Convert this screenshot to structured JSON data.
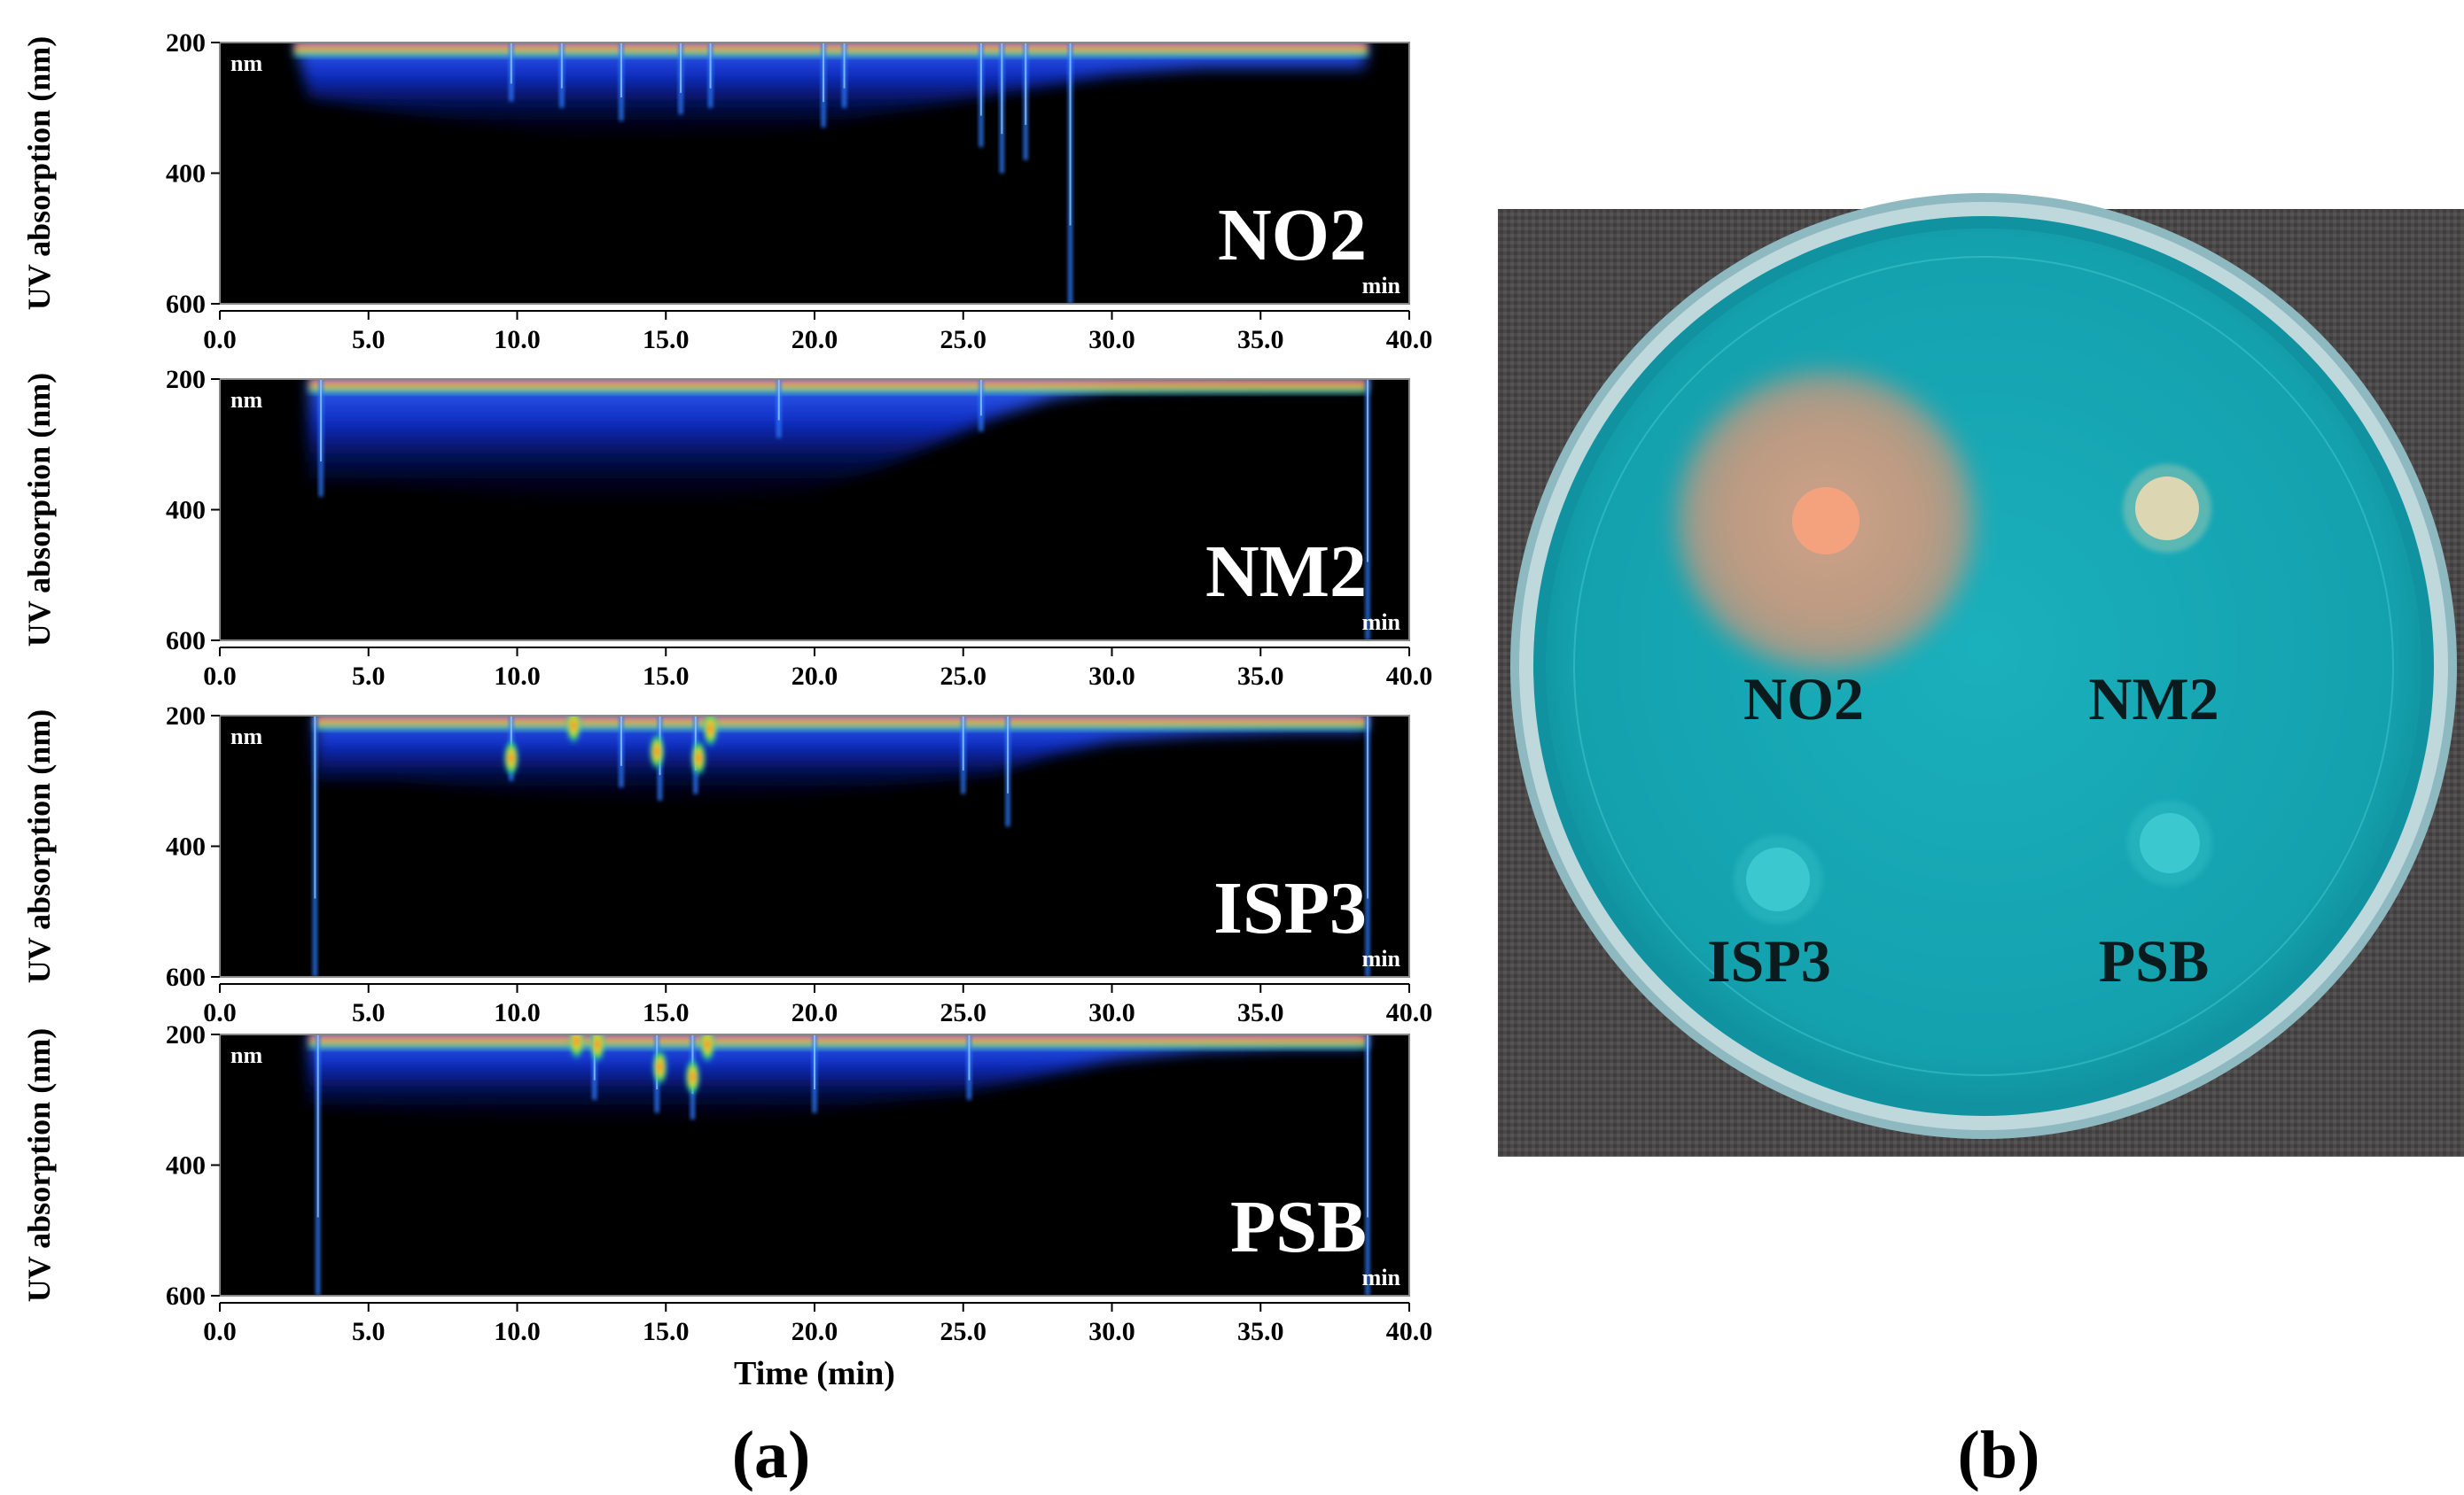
{
  "chart_data": [
    {
      "type": "heatmap",
      "name": "NO2",
      "unit_y": "nm",
      "unit_x": "min",
      "ylabel": "UV absorption (nm)",
      "xlim": [
        0,
        40
      ],
      "ylim": [
        200,
        600
      ],
      "yticks": [
        "200",
        "400",
        "600"
      ],
      "xticks": [
        "0.0",
        "5.0",
        "10.0",
        "15.0",
        "20.0",
        "25.0",
        "30.0",
        "35.0",
        "40.0"
      ],
      "signal_start_min": 2.5,
      "signal_end_min": 38.6,
      "band_depth_nm": [
        [
          3,
          285
        ],
        [
          5,
          300
        ],
        [
          8,
          320
        ],
        [
          10,
          330
        ],
        [
          12,
          350
        ],
        [
          14,
          355
        ],
        [
          16,
          345
        ],
        [
          18,
          340
        ],
        [
          20,
          330
        ],
        [
          22,
          310
        ],
        [
          24,
          295
        ],
        [
          26,
          280
        ],
        [
          28,
          265
        ],
        [
          30,
          250
        ],
        [
          33,
          240
        ],
        [
          36,
          240
        ],
        [
          38.5,
          240
        ]
      ],
      "peaks": [
        {
          "t": 9.8,
          "depth": 290
        },
        {
          "t": 11.5,
          "depth": 300
        },
        {
          "t": 13.5,
          "depth": 320
        },
        {
          "t": 15.5,
          "depth": 310
        },
        {
          "t": 16.5,
          "depth": 300
        },
        {
          "t": 20.3,
          "depth": 330
        },
        {
          "t": 21.0,
          "depth": 300
        },
        {
          "t": 25.6,
          "depth": 360
        },
        {
          "t": 26.3,
          "depth": 400
        },
        {
          "t": 27.1,
          "depth": 380
        },
        {
          "t": 28.6,
          "depth": 600
        }
      ],
      "hot_spots": []
    },
    {
      "type": "heatmap",
      "name": "NM2",
      "unit_y": "nm",
      "unit_x": "min",
      "ylabel": "UV absorption (nm)",
      "xlim": [
        0,
        40
      ],
      "ylim": [
        200,
        600
      ],
      "yticks": [
        "200",
        "400",
        "600"
      ],
      "xticks": [
        "0.0",
        "5.0",
        "10.0",
        "15.0",
        "20.0",
        "25.0",
        "30.0",
        "35.0",
        "40.0"
      ],
      "signal_start_min": 3.0,
      "signal_end_min": 38.6,
      "band_depth_nm": [
        [
          3,
          360
        ],
        [
          5,
          360
        ],
        [
          8,
          370
        ],
        [
          10,
          385
        ],
        [
          12,
          395
        ],
        [
          14,
          400
        ],
        [
          16,
          395
        ],
        [
          18,
          385
        ],
        [
          20,
          370
        ],
        [
          22,
          340
        ],
        [
          24,
          300
        ],
        [
          26,
          260
        ],
        [
          28,
          230
        ],
        [
          30,
          215
        ],
        [
          35,
          210
        ],
        [
          38.5,
          210
        ]
      ],
      "peaks": [
        {
          "t": 3.4,
          "depth": 380
        },
        {
          "t": 18.8,
          "depth": 290
        },
        {
          "t": 25.6,
          "depth": 280
        },
        {
          "t": 38.6,
          "depth": 600
        }
      ],
      "hot_spots": []
    },
    {
      "type": "heatmap",
      "name": "ISP3",
      "unit_y": "nm",
      "unit_x": "min",
      "ylabel": "UV absorption (nm)",
      "xlim": [
        0,
        40
      ],
      "ylim": [
        200,
        600
      ],
      "yticks": [
        "200",
        "400",
        "600"
      ],
      "xticks": [
        "0.0",
        "5.0",
        "10.0",
        "15.0",
        "20.0",
        "25.0",
        "30.0",
        "35.0",
        "40.0"
      ],
      "signal_start_min": 3.2,
      "signal_end_min": 38.6,
      "band_depth_nm": [
        [
          3.2,
          300
        ],
        [
          6,
          300
        ],
        [
          10,
          320
        ],
        [
          13,
          330
        ],
        [
          15,
          340
        ],
        [
          17,
          330
        ],
        [
          20,
          320
        ],
        [
          23,
          305
        ],
        [
          26,
          290
        ],
        [
          28,
          260
        ],
        [
          30,
          240
        ],
        [
          33,
          230
        ],
        [
          36,
          225
        ],
        [
          38.5,
          225
        ]
      ],
      "peaks": [
        {
          "t": 3.2,
          "depth": 600
        },
        {
          "t": 9.8,
          "depth": 300
        },
        {
          "t": 13.5,
          "depth": 310
        },
        {
          "t": 14.8,
          "depth": 330
        },
        {
          "t": 16.0,
          "depth": 320
        },
        {
          "t": 25.0,
          "depth": 320
        },
        {
          "t": 26.5,
          "depth": 370
        },
        {
          "t": 38.6,
          "depth": 600
        }
      ],
      "hot_spots": [
        {
          "t": 9.8,
          "nm": 265
        },
        {
          "t": 11.9,
          "nm": 215
        },
        {
          "t": 14.7,
          "nm": 255
        },
        {
          "t": 16.1,
          "nm": 265
        },
        {
          "t": 16.5,
          "nm": 220
        }
      ]
    },
    {
      "type": "heatmap",
      "name": "PSB",
      "unit_y": "nm",
      "unit_x": "min",
      "ylabel": "UV absorption (nm)",
      "xlabel": "Time (min)",
      "xlim": [
        0,
        40
      ],
      "ylim": [
        200,
        600
      ],
      "yticks": [
        "200",
        "400",
        "600"
      ],
      "xticks": [
        "0.0",
        "5.0",
        "10.0",
        "15.0",
        "20.0",
        "25.0",
        "30.0",
        "35.0",
        "40.0"
      ],
      "signal_start_min": 3.0,
      "signal_end_min": 38.6,
      "band_depth_nm": [
        [
          3,
          310
        ],
        [
          6,
          320
        ],
        [
          10,
          330
        ],
        [
          13,
          340
        ],
        [
          15,
          340
        ],
        [
          17,
          330
        ],
        [
          20,
          320
        ],
        [
          23,
          300
        ],
        [
          25,
          290
        ],
        [
          28,
          260
        ],
        [
          30,
          240
        ],
        [
          33,
          225
        ],
        [
          36,
          220
        ],
        [
          38.5,
          220
        ]
      ],
      "peaks": [
        {
          "t": 3.3,
          "depth": 600
        },
        {
          "t": 12.6,
          "depth": 300
        },
        {
          "t": 14.7,
          "depth": 320
        },
        {
          "t": 15.9,
          "depth": 330
        },
        {
          "t": 20.0,
          "depth": 320
        },
        {
          "t": 25.2,
          "depth": 300
        },
        {
          "t": 38.6,
          "depth": 600
        }
      ],
      "hot_spots": [
        {
          "t": 12.0,
          "nm": 210
        },
        {
          "t": 12.7,
          "nm": 215
        },
        {
          "t": 14.8,
          "nm": 250
        },
        {
          "t": 15.9,
          "nm": 265
        },
        {
          "t": 16.4,
          "nm": 215
        }
      ]
    }
  ],
  "panel_labels": {
    "a": "(a)",
    "b": "(b)"
  },
  "photo": {
    "background_color": "#4a4848",
    "agar_color": "#1aa6b2",
    "rim_color": "#bfd8dc",
    "colonies": [
      {
        "label": "NO2",
        "halo": true,
        "halo_color": "#d49a7c",
        "colony_color": "#f4a27e"
      },
      {
        "label": "NM2",
        "halo": false,
        "colony_color": "#dcd7b2"
      },
      {
        "label": "ISP3",
        "halo": false,
        "colony_color": "#3cc8cf"
      },
      {
        "label": "PSB",
        "halo": false,
        "colony_color": "#3cc8cf"
      }
    ]
  }
}
